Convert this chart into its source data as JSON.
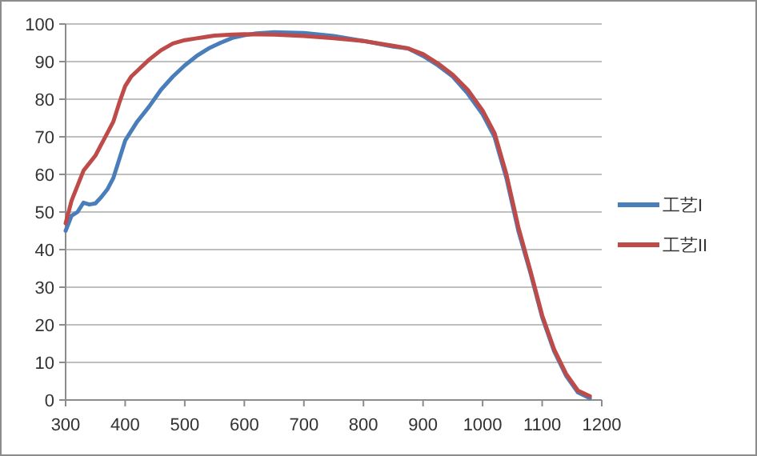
{
  "chart_data": {
    "type": "line",
    "legend": "right",
    "grid": "y",
    "marker": "none",
    "line_style": "solid",
    "xlim": [
      300,
      1200
    ],
    "xticks": [
      300,
      400,
      500,
      600,
      700,
      800,
      900,
      1000,
      1100,
      1200
    ],
    "ylim": [
      0,
      100
    ],
    "yticks": [
      0,
      10,
      20,
      30,
      40,
      50,
      60,
      70,
      80,
      90,
      100
    ],
    "series": [
      {
        "name": "工艺I",
        "color": "#4a7ebb",
        "x": [
          300,
          310,
          320,
          330,
          340,
          350,
          360,
          370,
          380,
          390,
          400,
          420,
          440,
          460,
          480,
          500,
          520,
          540,
          560,
          580,
          600,
          620,
          650,
          700,
          750,
          800,
          850,
          875,
          900,
          925,
          950,
          975,
          1000,
          1020,
          1040,
          1060,
          1080,
          1100,
          1120,
          1140,
          1160,
          1180
        ],
        "values": [
          45,
          49,
          50,
          52.5,
          52,
          52.3,
          54,
          56,
          59,
          64,
          69,
          74,
          78,
          82.5,
          86,
          89,
          91.5,
          93.5,
          95,
          96.3,
          97,
          97.5,
          97.8,
          97.6,
          96.8,
          95.5,
          94,
          93.5,
          91.5,
          89,
          86,
          81.5,
          76,
          70,
          59,
          45,
          34,
          22,
          13,
          6.5,
          2,
          0.5
        ]
      },
      {
        "name": "工艺II",
        "color": "#be4b48",
        "x": [
          300,
          310,
          320,
          330,
          340,
          350,
          360,
          370,
          380,
          390,
          400,
          410,
          420,
          440,
          460,
          480,
          500,
          520,
          550,
          580,
          600,
          650,
          700,
          750,
          800,
          850,
          875,
          900,
          925,
          950,
          975,
          1000,
          1020,
          1040,
          1060,
          1080,
          1100,
          1120,
          1140,
          1160,
          1180
        ],
        "values": [
          47,
          53,
          57,
          61,
          63,
          65,
          68,
          71,
          74,
          79,
          83.5,
          86,
          87.5,
          90.5,
          93,
          94.8,
          95.7,
          96.2,
          96.9,
          97.2,
          97.3,
          97.2,
          96.8,
          96.2,
          95.5,
          94.2,
          93.5,
          92,
          89.5,
          86.5,
          82.5,
          77,
          71,
          60,
          46,
          34.5,
          22.5,
          13.5,
          7,
          2.5,
          1
        ]
      }
    ]
  }
}
